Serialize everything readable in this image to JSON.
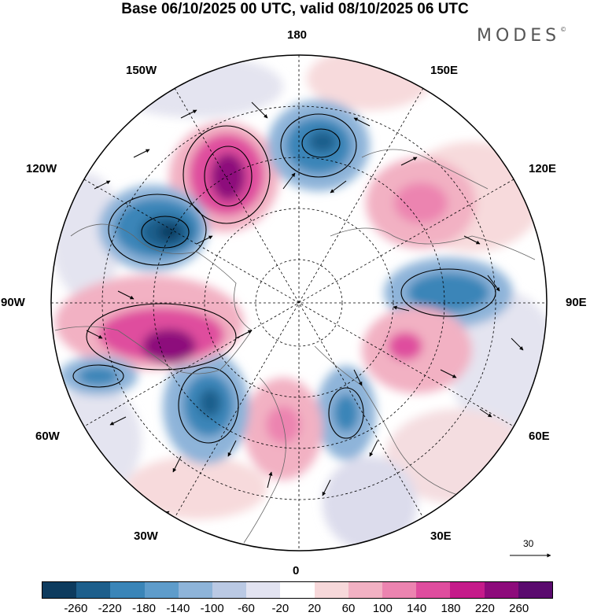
{
  "title": "Base 06/10/2025 00 UTC, valid 08/10/2025 06 UTC",
  "logo": "MODES",
  "logo_mark": "©",
  "longitude_labels": [
    {
      "id": "lon-180",
      "text": "180"
    },
    {
      "id": "lon-150e",
      "text": "150E"
    },
    {
      "id": "lon-120e",
      "text": "120E"
    },
    {
      "id": "lon-90e",
      "text": "90E"
    },
    {
      "id": "lon-60e",
      "text": "60E"
    },
    {
      "id": "lon-30e",
      "text": "30E"
    },
    {
      "id": "lon-0",
      "text": "0"
    },
    {
      "id": "lon-30w",
      "text": "30W"
    },
    {
      "id": "lon-60w",
      "text": "60W"
    },
    {
      "id": "lon-90w",
      "text": "90W"
    },
    {
      "id": "lon-120w",
      "text": "120W"
    },
    {
      "id": "lon-150w",
      "text": "150W"
    }
  ],
  "vector_scale_label": "30",
  "colorbar": {
    "colors": [
      "#0d3b5e",
      "#1d5f8c",
      "#3a85b8",
      "#5e9ccb",
      "#8eb4d9",
      "#bac9e4",
      "#e2e3f1",
      "#ffffff",
      "#f7d8da",
      "#f2b1c3",
      "#ec84b0",
      "#df4d9e",
      "#c51b8a",
      "#8d0b7b",
      "#5a0a6e"
    ],
    "labels": [
      "-260",
      "-220",
      "-180",
      "-140",
      "-100",
      "-60",
      "-20",
      "20",
      "60",
      "100",
      "140",
      "180",
      "220",
      "260"
    ]
  }
}
